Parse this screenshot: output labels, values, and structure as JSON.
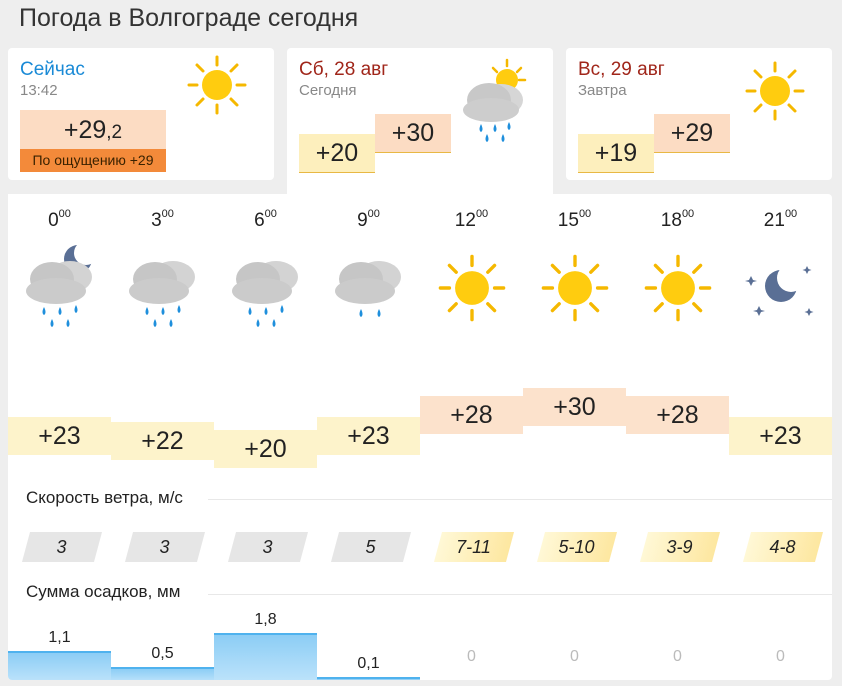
{
  "page_title": "Погода в Волгограде сегодня",
  "now": {
    "label": "Сейчас",
    "time": "13:42",
    "temp_int": "+29",
    "temp_dec": ",2",
    "feels_like": "По ощущению +29",
    "icon": "sun-icon"
  },
  "saturday": {
    "label": "Сб, 28 авг",
    "sub": "Сегодня",
    "low": "+20",
    "high": "+30",
    "icon": "cloud-sun-rain-icon"
  },
  "sunday": {
    "label": "Вс, 29 авг",
    "sub": "Завтра",
    "low": "+19",
    "high": "+29",
    "icon": "sun-icon"
  },
  "hours": [
    {
      "hour": "0",
      "min": "00",
      "icon": "night-cloud-rain-icon",
      "temp": "+23",
      "temp_value": 23,
      "wind": "3",
      "wind_class": "calm",
      "precip": "1,1",
      "precip_value": 1.1
    },
    {
      "hour": "3",
      "min": "00",
      "icon": "cloud-rain-icon",
      "temp": "+22",
      "temp_value": 22,
      "wind": "3",
      "wind_class": "calm",
      "precip": "0,5",
      "precip_value": 0.5
    },
    {
      "hour": "6",
      "min": "00",
      "icon": "cloud-rain-icon",
      "temp": "+20",
      "temp_value": 20,
      "wind": "3",
      "wind_class": "calm",
      "precip": "1,8",
      "precip_value": 1.8
    },
    {
      "hour": "9",
      "min": "00",
      "icon": "cloud-rain-light-icon",
      "temp": "+23",
      "temp_value": 23,
      "wind": "5",
      "wind_class": "calm",
      "precip": "0,1",
      "precip_value": 0.1
    },
    {
      "hour": "12",
      "min": "00",
      "icon": "sun-icon",
      "temp": "+28",
      "temp_value": 28,
      "wind": "7-11",
      "wind_class": "breezy",
      "precip": "0",
      "precip_value": 0
    },
    {
      "hour": "15",
      "min": "00",
      "icon": "sun-icon",
      "temp": "+30",
      "temp_value": 30,
      "wind": "5-10",
      "wind_class": "breezy",
      "precip": "0",
      "precip_value": 0
    },
    {
      "hour": "18",
      "min": "00",
      "icon": "sun-icon",
      "temp": "+28",
      "temp_value": 28,
      "wind": "3-9",
      "wind_class": "breezy",
      "precip": "0",
      "precip_value": 0
    },
    {
      "hour": "21",
      "min": "00",
      "icon": "moon-stars-icon",
      "temp": "+23",
      "temp_value": 23,
      "wind": "4-8",
      "wind_class": "breezy",
      "precip": "0",
      "precip_value": 0
    }
  ],
  "wind_label": "Скорость ветра, м/с",
  "precip_label": "Сумма осадков, мм",
  "colors": {
    "now_label": "#1a8ad6",
    "day_label": "#a0261a",
    "warm_bar": "#fdf3cb",
    "hot_bar": "#fce2cc",
    "feels_bg": "#f38a3a",
    "precip_fill": "#bde3fb"
  }
}
